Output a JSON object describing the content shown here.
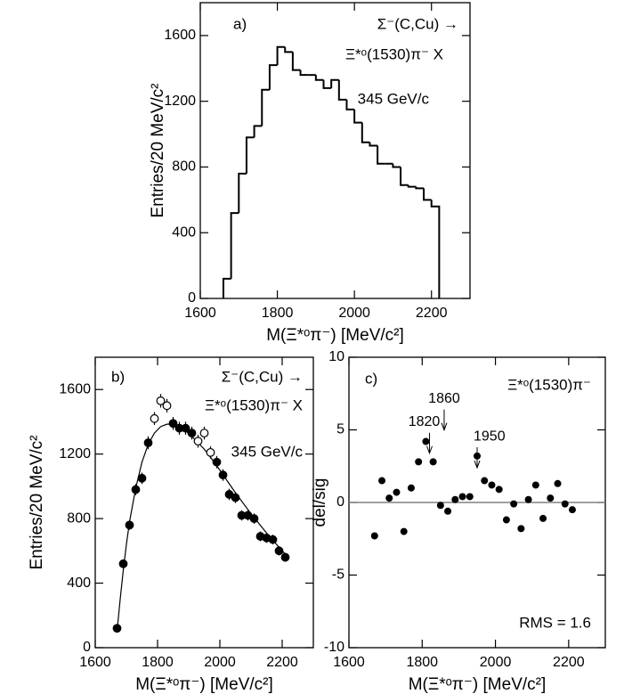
{
  "chart_data": [
    {
      "type": "histogram",
      "panel_label": "a)",
      "annotations": [
        "Σ⁻(C,Cu)  →",
        "Ξ*ᵒ(1530)π⁻ X",
        "345 GeV/c"
      ],
      "xlabel": "M(Ξ*ᵒπ⁻)  [MeV/c²]",
      "ylabel": "Entries/20 MeV/c²",
      "bins": [
        1660,
        1680,
        1700,
        1720,
        1740,
        1760,
        1780,
        1800,
        1820,
        1840,
        1860,
        1880,
        1900,
        1920,
        1940,
        1960,
        1980,
        2000,
        2020,
        2040,
        2060,
        2080,
        2100,
        2120,
        2140,
        2160,
        2180,
        2200,
        2220
      ],
      "values": [
        120,
        520,
        760,
        980,
        1050,
        1270,
        1420,
        1530,
        1500,
        1390,
        1360,
        1360,
        1330,
        1280,
        1330,
        1210,
        1150,
        1070,
        950,
        930,
        820,
        820,
        800,
        690,
        680,
        670,
        600,
        560
      ],
      "color": "#000000",
      "xlim": [
        1600,
        2300
      ],
      "xticks": [
        1600,
        1800,
        2000,
        2200
      ],
      "ylim": [
        0,
        1800
      ],
      "yticks": [
        0,
        400,
        800,
        1200,
        1600
      ]
    },
    {
      "type": "errorbar",
      "panel_label": "b)",
      "annotations": [
        "Σ⁻(C,Cu)  →",
        "Ξ*ᵒ(1530)π⁻ X",
        "345 GeV/c"
      ],
      "xlabel": "M(Ξ*ᵒπ⁻)  [MeV/c²]",
      "ylabel": "Entries/20 MeV/c²",
      "x": [
        1670,
        1690,
        1710,
        1730,
        1750,
        1770,
        1790,
        1810,
        1830,
        1850,
        1870,
        1890,
        1910,
        1930,
        1950,
        1970,
        1990,
        2010,
        2030,
        2050,
        2070,
        2090,
        2110,
        2130,
        2150,
        2170,
        2190,
        2210
      ],
      "values": [
        120,
        520,
        760,
        980,
        1050,
        1270,
        1420,
        1530,
        1500,
        1390,
        1360,
        1360,
        1330,
        1280,
        1330,
        1210,
        1150,
        1070,
        950,
        930,
        820,
        820,
        800,
        690,
        680,
        670,
        600,
        560
      ],
      "errors": [
        15,
        25,
        30,
        35,
        35,
        40,
        40,
        42,
        42,
        40,
        40,
        40,
        40,
        40,
        40,
        38,
        38,
        36,
        35,
        34,
        32,
        32,
        32,
        30,
        30,
        30,
        28,
        28
      ],
      "open": [
        false,
        false,
        false,
        false,
        false,
        false,
        true,
        true,
        true,
        false,
        false,
        false,
        false,
        true,
        true,
        true,
        false,
        false,
        false,
        false,
        false,
        false,
        false,
        false,
        false,
        false,
        false,
        false
      ],
      "fit": {
        "x": [
          1670,
          1680,
          1690,
          1700,
          1710,
          1730,
          1750,
          1770,
          1790,
          1810,
          1830,
          1850,
          1870,
          1890,
          1910,
          1930,
          1950,
          1970,
          2000,
          2050,
          2100,
          2150,
          2200,
          2210
        ],
        "values": [
          100,
          300,
          480,
          640,
          780,
          990,
          1150,
          1260,
          1330,
          1370,
          1385,
          1385,
          1370,
          1345,
          1310,
          1270,
          1230,
          1180,
          1100,
          960,
          830,
          710,
          600,
          580
        ]
      },
      "color": "#000000",
      "xlim": [
        1600,
        2300
      ],
      "xticks": [
        1600,
        1800,
        2000,
        2200
      ],
      "ylim": [
        0,
        1800
      ],
      "yticks": [
        0,
        400,
        800,
        1200,
        1600
      ]
    },
    {
      "type": "scatter",
      "panel_label": "c)",
      "annotations": [
        "Ξ*ᵒ(1530)π⁻",
        "RMS = 1.6"
      ],
      "xlabel": "M(Ξ*ᵒπ⁻)  [MeV/c²]",
      "ylabel": "del/sig",
      "x": [
        1670,
        1690,
        1710,
        1730,
        1750,
        1770,
        1790,
        1810,
        1830,
        1850,
        1870,
        1890,
        1910,
        1930,
        1950,
        1970,
        1990,
        2010,
        2030,
        2050,
        2070,
        2090,
        2110,
        2130,
        2150,
        2170,
        2190,
        2210
      ],
      "values": [
        -2.3,
        1.5,
        0.3,
        0.7,
        -2.0,
        1.0,
        2.8,
        4.2,
        2.8,
        -0.2,
        -0.6,
        0.2,
        0.4,
        0.4,
        3.2,
        1.5,
        1.2,
        0.9,
        -1.2,
        -0.1,
        -1.8,
        0.2,
        1.2,
        -1.1,
        0.3,
        1.3,
        -0.1,
        -0.5
      ],
      "arrows": [
        "1820",
        "1860",
        "1950"
      ],
      "hline": 0,
      "hline_color": "#808080",
      "color": "#000000",
      "xlim": [
        1600,
        2300
      ],
      "xticks": [
        1600,
        1800,
        2000,
        2200
      ],
      "ylim": [
        -10,
        10
      ],
      "yticks": [
        -10,
        -5,
        0,
        5,
        10
      ]
    }
  ]
}
